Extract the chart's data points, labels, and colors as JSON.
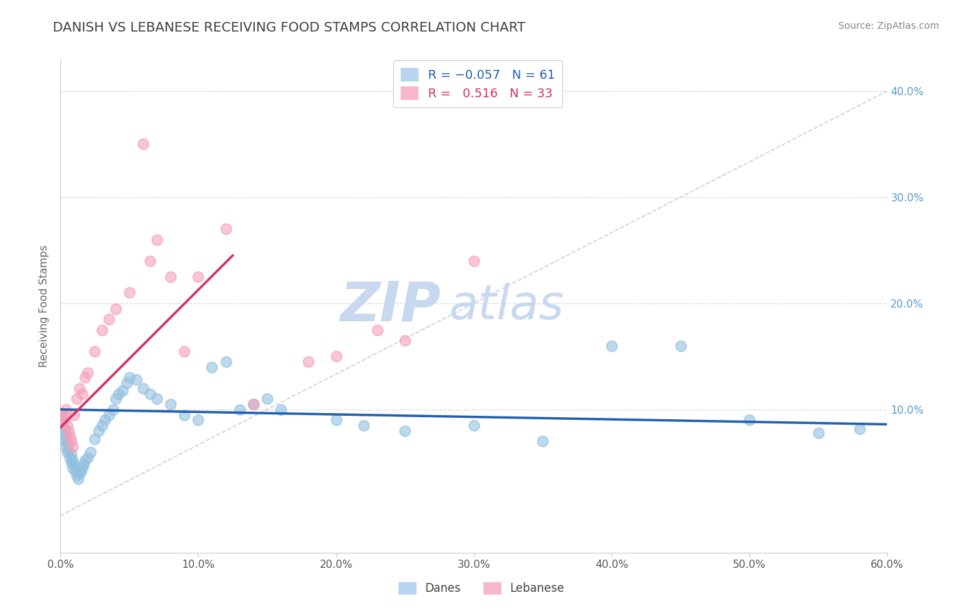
{
  "title": "DANISH VS LEBANESE RECEIVING FOOD STAMPS CORRELATION CHART",
  "source": "Source: ZipAtlas.com",
  "ylabel": "Receiving Food Stamps",
  "xlim": [
    0.0,
    0.6
  ],
  "ylim": [
    -0.035,
    0.43
  ],
  "xticks": [
    0.0,
    0.1,
    0.2,
    0.3,
    0.4,
    0.5,
    0.6
  ],
  "xtick_labels": [
    "0.0%",
    "10.0%",
    "20.0%",
    "30.0%",
    "40.0%",
    "50.0%",
    "60.0%"
  ],
  "yticks_right": [
    0.1,
    0.2,
    0.3,
    0.4
  ],
  "ytick_labels_right": [
    "10.0%",
    "20.0%",
    "30.0%",
    "40.0%"
  ],
  "danes_color": "#92c0e0",
  "lebanese_color": "#f4a0b8",
  "danes_line_color": "#2060b0",
  "lebanese_line_color": "#d83060",
  "danes_R": -0.057,
  "danes_N": 61,
  "lebanese_R": 0.516,
  "lebanese_N": 33,
  "danes_scatter_x": [
    0.001,
    0.001,
    0.002,
    0.002,
    0.003,
    0.003,
    0.004,
    0.004,
    0.005,
    0.005,
    0.006,
    0.007,
    0.008,
    0.008,
    0.009,
    0.009,
    0.01,
    0.011,
    0.012,
    0.013,
    0.014,
    0.015,
    0.016,
    0.017,
    0.018,
    0.02,
    0.022,
    0.025,
    0.028,
    0.03,
    0.032,
    0.035,
    0.038,
    0.04,
    0.042,
    0.045,
    0.048,
    0.05,
    0.055,
    0.06,
    0.065,
    0.07,
    0.08,
    0.09,
    0.1,
    0.11,
    0.12,
    0.13,
    0.14,
    0.15,
    0.16,
    0.2,
    0.22,
    0.25,
    0.3,
    0.35,
    0.4,
    0.45,
    0.5,
    0.55,
    0.58
  ],
  "danes_scatter_y": [
    0.095,
    0.085,
    0.09,
    0.078,
    0.082,
    0.072,
    0.075,
    0.065,
    0.068,
    0.06,
    0.062,
    0.055,
    0.058,
    0.05,
    0.052,
    0.045,
    0.048,
    0.042,
    0.038,
    0.035,
    0.04,
    0.042,
    0.045,
    0.048,
    0.052,
    0.055,
    0.06,
    0.072,
    0.08,
    0.085,
    0.09,
    0.095,
    0.1,
    0.11,
    0.115,
    0.118,
    0.125,
    0.13,
    0.128,
    0.12,
    0.115,
    0.11,
    0.105,
    0.095,
    0.09,
    0.14,
    0.145,
    0.1,
    0.105,
    0.11,
    0.1,
    0.09,
    0.085,
    0.08,
    0.085,
    0.07,
    0.16,
    0.16,
    0.09,
    0.078,
    0.082
  ],
  "lebanese_scatter_x": [
    0.001,
    0.002,
    0.003,
    0.004,
    0.005,
    0.006,
    0.007,
    0.008,
    0.009,
    0.01,
    0.012,
    0.014,
    0.016,
    0.018,
    0.02,
    0.025,
    0.03,
    0.035,
    0.04,
    0.05,
    0.06,
    0.065,
    0.07,
    0.08,
    0.09,
    0.1,
    0.12,
    0.14,
    0.18,
    0.2,
    0.23,
    0.25,
    0.3
  ],
  "lebanese_scatter_y": [
    0.092,
    0.088,
    0.095,
    0.1,
    0.085,
    0.08,
    0.075,
    0.07,
    0.065,
    0.095,
    0.11,
    0.12,
    0.115,
    0.13,
    0.135,
    0.155,
    0.175,
    0.185,
    0.195,
    0.21,
    0.35,
    0.24,
    0.26,
    0.225,
    0.155,
    0.225,
    0.27,
    0.105,
    0.145,
    0.15,
    0.175,
    0.165,
    0.24
  ],
  "danes_line_x": [
    0.0,
    0.6
  ],
  "danes_line_y": [
    0.1,
    0.086
  ],
  "lebanese_line_x": [
    0.0,
    0.125
  ],
  "lebanese_line_y": [
    0.083,
    0.245
  ],
  "ref_line_x": [
    0.0,
    0.6
  ],
  "ref_line_y": [
    0.0,
    0.4
  ],
  "background_color": "#ffffff",
  "grid_color": "#d8d8d8",
  "title_color": "#404040",
  "source_color": "#888888",
  "watermark_color": "#d0dcea",
  "scatter_size": 120,
  "scatter_lw": 1.5
}
